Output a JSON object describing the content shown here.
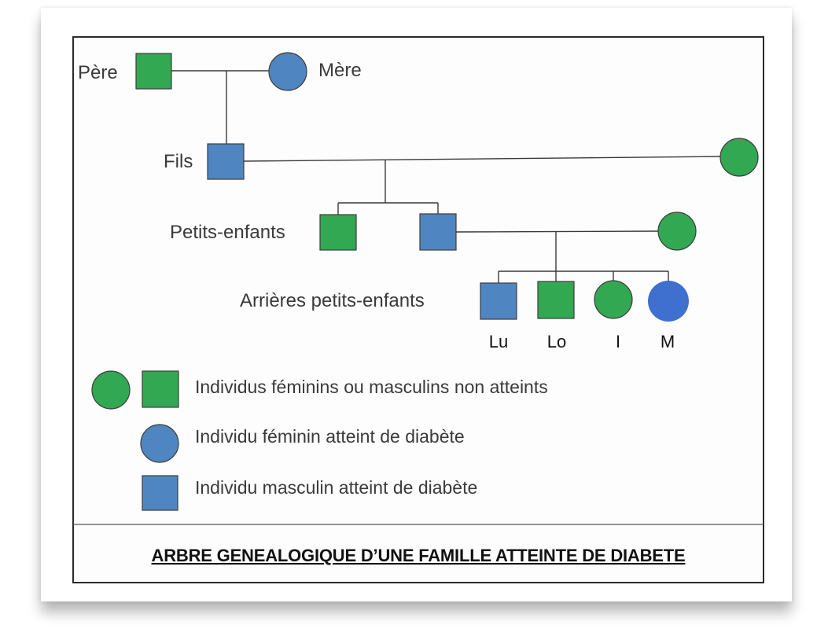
{
  "colors": {
    "unaffected": "#32a853",
    "affected_rect": "#4f86c1",
    "affected_m": "#3f6fcf",
    "line": "#3a3a3a"
  },
  "generations": {
    "g1_left": "Père",
    "g1_right": "Mère",
    "g2": "Fils",
    "g3": "Petits-enfants",
    "g4": "Arrières petits-enfants"
  },
  "children_names": [
    "Lu",
    "Lo",
    "I",
    "M"
  ],
  "legend": {
    "unaffected": "Individus féminins ou masculins non atteints",
    "affected_female": "Individu féminin atteint de diabète",
    "affected_male": "Individu masculin atteint de diabète"
  },
  "title": "ARBRE GENEALOGIQUE D’UNE FAMILLE ATTEINTE DE DIABETE"
}
